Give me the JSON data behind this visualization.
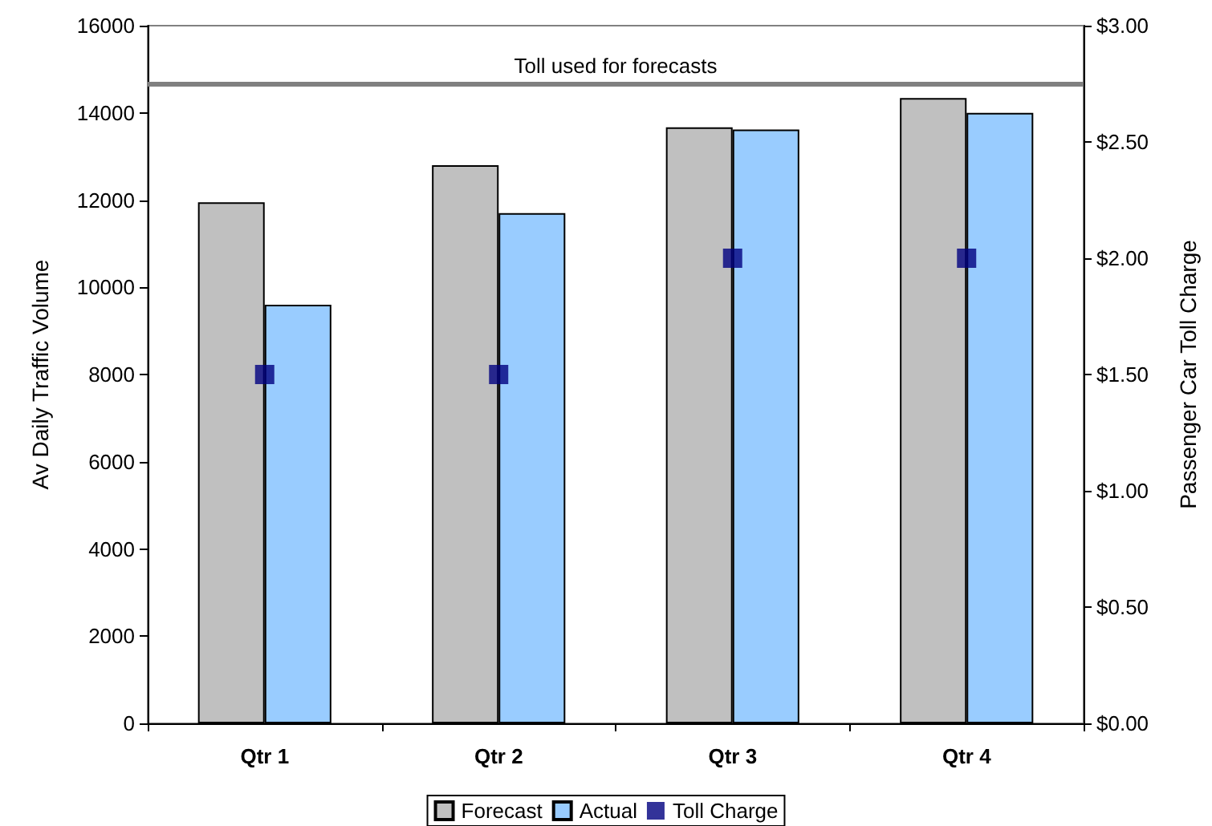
{
  "chart_data": {
    "type": "bar",
    "ylabel": "Av Daily Traffic Volume",
    "y2label": "Passenger Car Toll Charge",
    "categories": [
      "Qtr 1",
      "Qtr 2",
      "Qtr 3",
      "Qtr 4"
    ],
    "series": [
      {
        "name": "Forecast",
        "color": "#c0c0c0",
        "values": [
          11950,
          12800,
          13670,
          14340
        ]
      },
      {
        "name": "Actual",
        "color": "#99ccff",
        "values": [
          9600,
          11700,
          13620,
          14000
        ]
      },
      {
        "name": "Toll Charge",
        "type": "scatter",
        "axis": "y2",
        "marker": "square",
        "color": "#000080",
        "values": [
          1.5,
          1.5,
          2.0,
          2.0
        ]
      }
    ],
    "ylim": [
      0,
      16000
    ],
    "yticks": [
      0,
      2000,
      4000,
      6000,
      8000,
      10000,
      12000,
      14000,
      16000
    ],
    "y2lim": [
      0,
      3
    ],
    "y2ticks": [
      {
        "value": 0,
        "label": "$0.00"
      },
      {
        "value": 0.5,
        "label": "$0.50"
      },
      {
        "value": 1,
        "label": "$1.00"
      },
      {
        "value": 1.5,
        "label": "$1.50"
      },
      {
        "value": 2,
        "label": "$2.00"
      },
      {
        "value": 2.5,
        "label": "$2.50"
      },
      {
        "value": 3,
        "label": "$3.00"
      }
    ],
    "ref_lines": [
      {
        "axis": "y2",
        "value": 2.75,
        "label": "Toll used for forecasts",
        "color": "#808080"
      }
    ],
    "grid": false,
    "legend": "bottom"
  }
}
